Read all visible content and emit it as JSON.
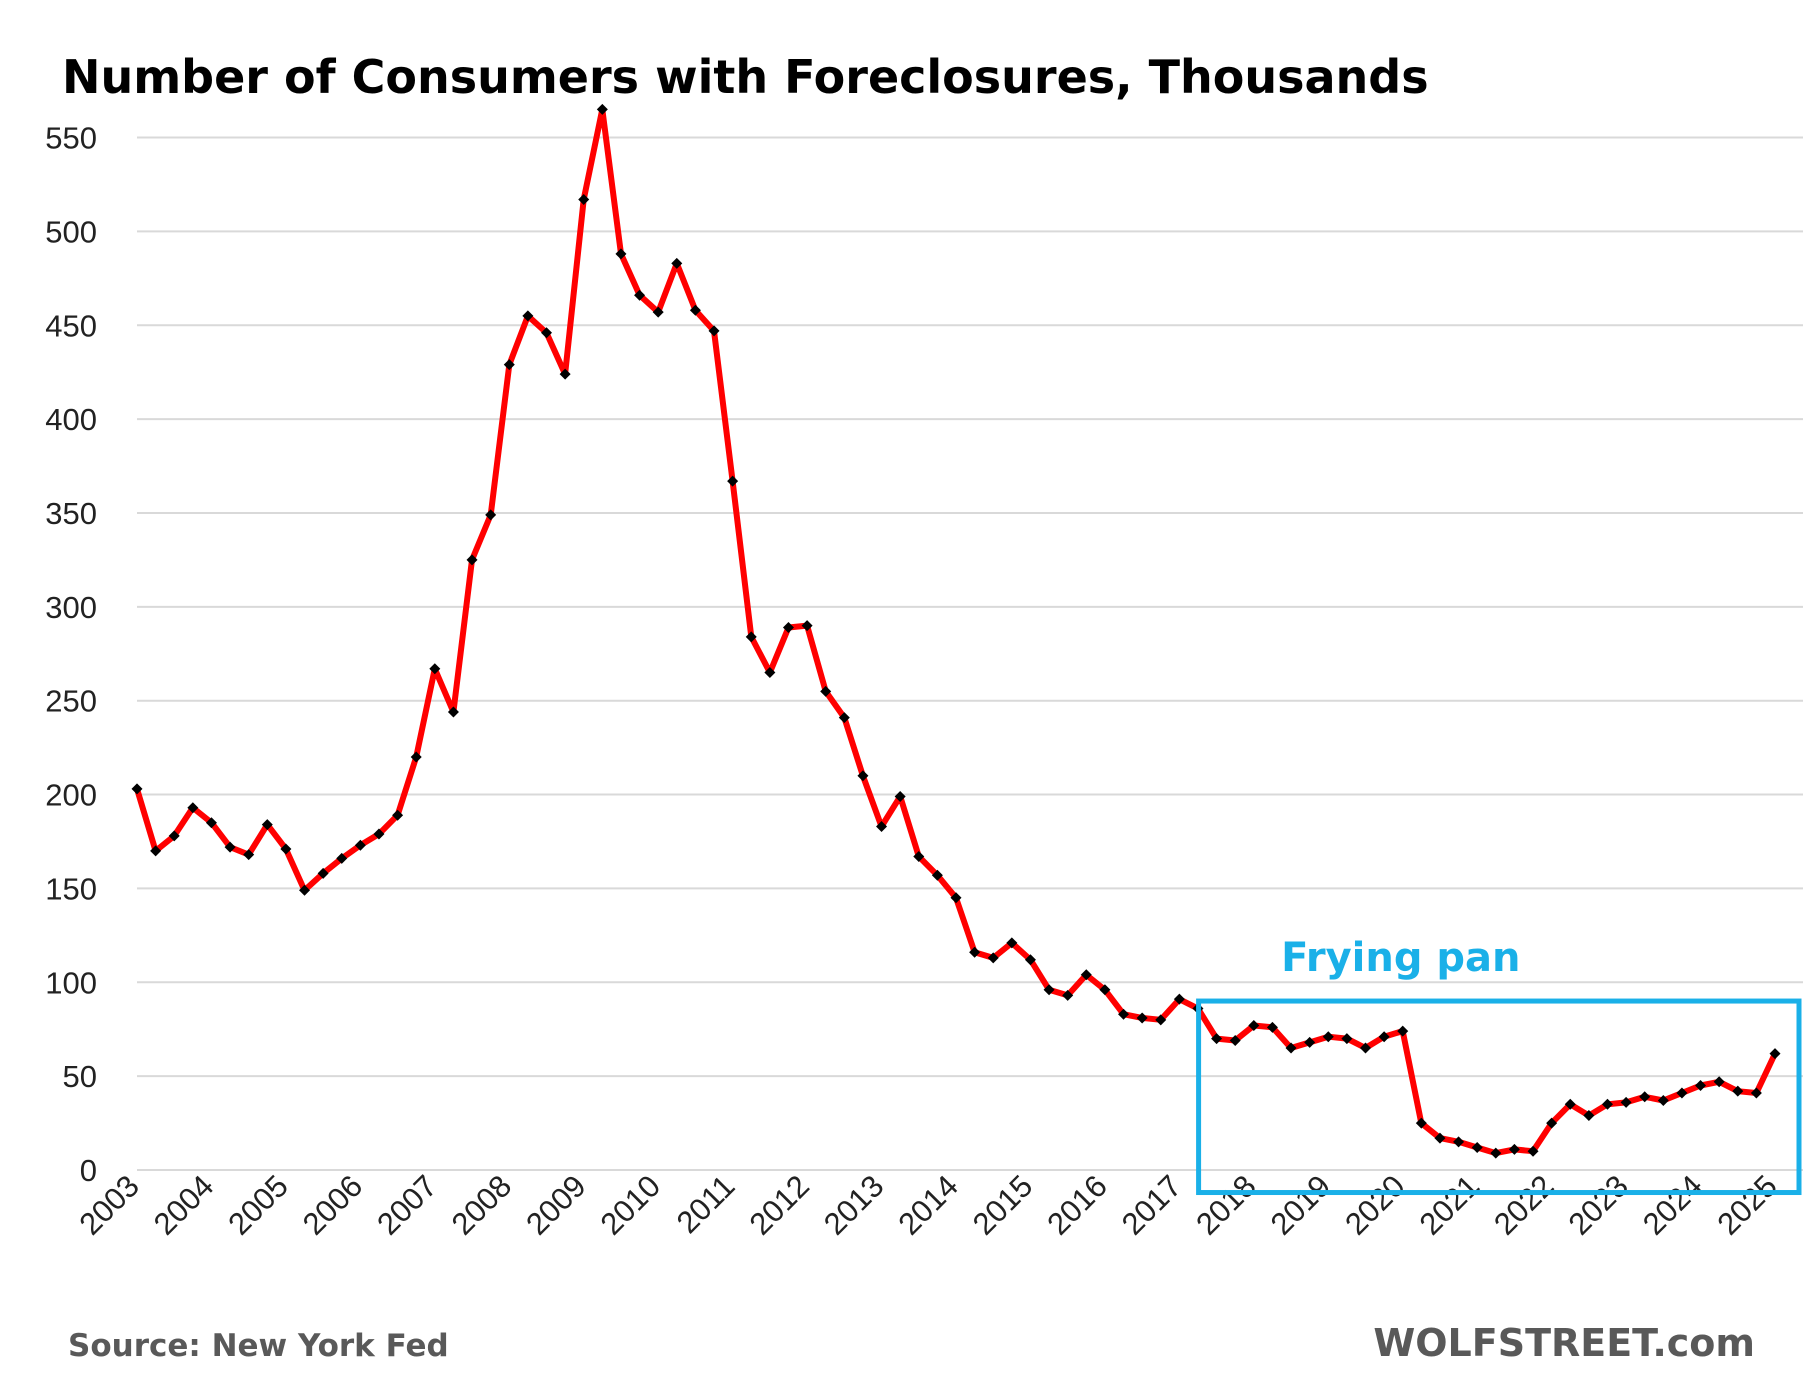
{
  "chart_data": {
    "type": "line",
    "title": "Number  of Consumers with Foreclosures, Thousands",
    "xlabel": "",
    "ylabel": "",
    "ylim": [
      0,
      570
    ],
    "yticks": [
      0,
      50,
      100,
      150,
      200,
      250,
      300,
      350,
      400,
      450,
      500,
      550
    ],
    "xlim": [
      2003,
      2025
    ],
    "xticks": [
      "2003",
      "2004",
      "2005",
      "2006",
      "2007",
      "2008",
      "2009",
      "2010",
      "2011",
      "2012",
      "2013",
      "2014",
      "2015",
      "2016",
      "2017",
      "2018",
      "2019",
      "2020",
      "2021",
      "2022",
      "2023",
      "2024",
      "2025"
    ],
    "grid": "horizontal",
    "frequency": "quarterly",
    "series": [
      {
        "color": "#ff0000",
        "marker_color": "#000000",
        "x": [
          "2003-Q1",
          "2003-Q2",
          "2003-Q3",
          "2003-Q4",
          "2004-Q1",
          "2004-Q2",
          "2004-Q3",
          "2004-Q4",
          "2005-Q1",
          "2005-Q2",
          "2005-Q3",
          "2005-Q4",
          "2006-Q1",
          "2006-Q2",
          "2006-Q3",
          "2006-Q4",
          "2007-Q1",
          "2007-Q2",
          "2007-Q3",
          "2007-Q4",
          "2008-Q1",
          "2008-Q2",
          "2008-Q3",
          "2008-Q4",
          "2009-Q1",
          "2009-Q2",
          "2009-Q3",
          "2009-Q4",
          "2010-Q1",
          "2010-Q2",
          "2010-Q3",
          "2010-Q4",
          "2011-Q1",
          "2011-Q2",
          "2011-Q3",
          "2011-Q4",
          "2012-Q1",
          "2012-Q2",
          "2012-Q3",
          "2012-Q4",
          "2013-Q1",
          "2013-Q2",
          "2013-Q3",
          "2013-Q4",
          "2014-Q1",
          "2014-Q2",
          "2014-Q3",
          "2014-Q4",
          "2015-Q1",
          "2015-Q2",
          "2015-Q3",
          "2015-Q4",
          "2016-Q1",
          "2016-Q2",
          "2016-Q3",
          "2016-Q4",
          "2017-Q1",
          "2017-Q2",
          "2017-Q3",
          "2017-Q4",
          "2018-Q1",
          "2018-Q2",
          "2018-Q3",
          "2018-Q4",
          "2019-Q1",
          "2019-Q2",
          "2019-Q3",
          "2019-Q4",
          "2020-Q1",
          "2020-Q2",
          "2020-Q3",
          "2020-Q4",
          "2021-Q1",
          "2021-Q2",
          "2021-Q3",
          "2021-Q4",
          "2022-Q1",
          "2022-Q2",
          "2022-Q3",
          "2022-Q4",
          "2023-Q1",
          "2023-Q2",
          "2023-Q3",
          "2023-Q4",
          "2024-Q1",
          "2024-Q2",
          "2024-Q3",
          "2024-Q4",
          "2025-Q1"
        ],
        "values": [
          203,
          170,
          178,
          193,
          185,
          172,
          168,
          184,
          171,
          149,
          158,
          166,
          173,
          179,
          189,
          220,
          267,
          244,
          325,
          349,
          429,
          455,
          446,
          424,
          517,
          565,
          488,
          466,
          457,
          483,
          458,
          447,
          367,
          284,
          265,
          289,
          290,
          255,
          241,
          210,
          183,
          199,
          167,
          157,
          145,
          116,
          113,
          121,
          112,
          96,
          93,
          104,
          96,
          83,
          81,
          80,
          91,
          86,
          70,
          69,
          77,
          76,
          65,
          68,
          71,
          70,
          65,
          71,
          74,
          25,
          17,
          15,
          12,
          9,
          11,
          10,
          25,
          35,
          29,
          35,
          36,
          39,
          37,
          41,
          45,
          47,
          42,
          41,
          62
        ]
      }
    ],
    "annotations": {
      "box_label": "Frying pan",
      "box_color": "#1ab0e8",
      "box_x_range": [
        "2017-Q3",
        "2025-Q1"
      ],
      "box_y_range": [
        -12,
        90
      ]
    },
    "source": "Source: New York Fed",
    "brand": "WOLFSTREET.com"
  }
}
